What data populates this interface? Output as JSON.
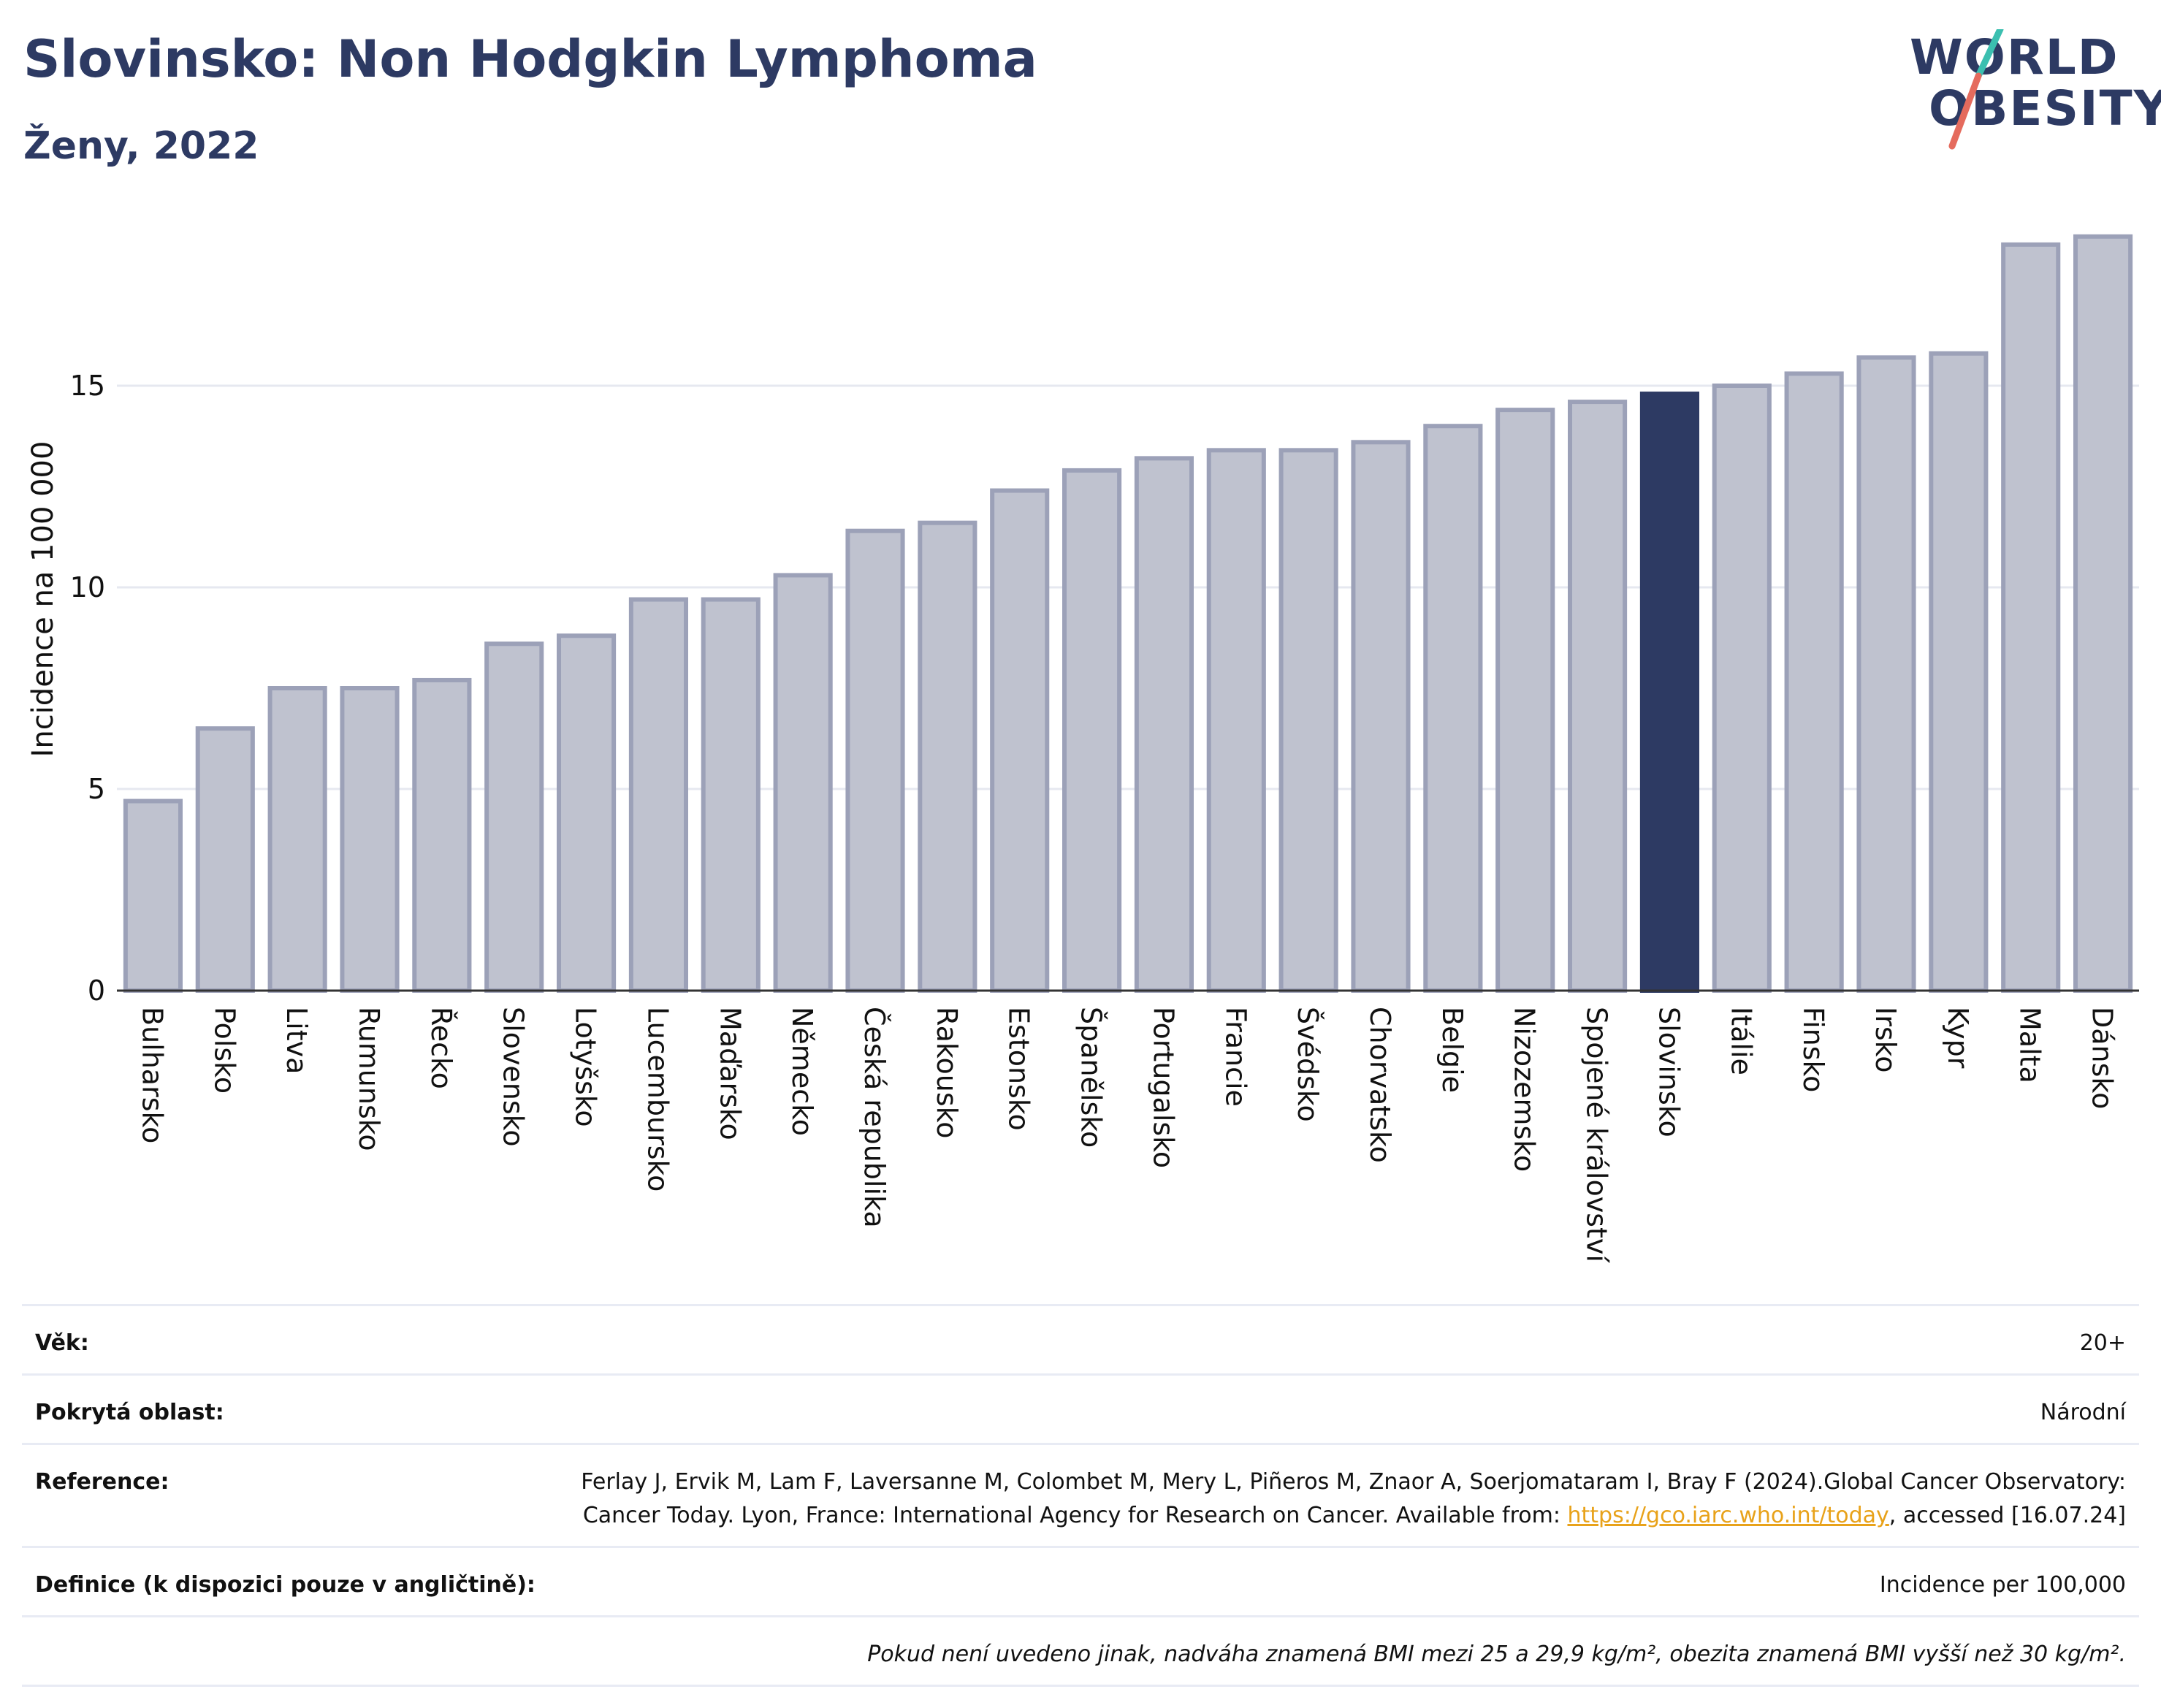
{
  "header": {
    "title": "Slovinsko: Non Hodgkin Lymphoma",
    "subtitle": "Ženy, 2022"
  },
  "logo": {
    "line1": "WORLD",
    "line2": "OBESITY",
    "colors": {
      "text": "#2d3a63",
      "slash_top": "#3bbfb0",
      "slash_bottom": "#e56b5d"
    }
  },
  "chart_data": {
    "type": "bar",
    "title": "Slovinsko: Non Hodgkin Lymphoma",
    "subtitle": "Ženy, 2022",
    "ylabel": "Incidence na 100 000",
    "xlabel": "",
    "ylim": [
      0,
      19
    ],
    "yticks": [
      0,
      5,
      10,
      15
    ],
    "grid": true,
    "categories": [
      "Bulharsko",
      "Polsko",
      "Litva",
      "Rumunsko",
      "Řecko",
      "Slovensko",
      "Lotyšsko",
      "Lucembursko",
      "Maďarsko",
      "Německo",
      "Česká republika",
      "Rakousko",
      "Estonsko",
      "Španělsko",
      "Portugalsko",
      "Francie",
      "Švédsko",
      "Chorvatsko",
      "Belgie",
      "Nizozemsko",
      "Spojené království",
      "Slovinsko",
      "Itálie",
      "Finsko",
      "Irsko",
      "Kypr",
      "Malta",
      "Dánsko"
    ],
    "values": [
      4.7,
      6.5,
      7.5,
      7.5,
      7.7,
      8.6,
      8.8,
      9.7,
      9.7,
      10.3,
      11.4,
      11.6,
      12.4,
      12.9,
      13.2,
      13.4,
      13.4,
      13.6,
      14.0,
      14.4,
      14.6,
      14.8,
      15.0,
      15.3,
      15.7,
      15.8,
      18.5,
      18.7
    ],
    "highlight": "Slovinsko",
    "colors": {
      "bar": "#bfc2cf",
      "bar_border": "#9ca1b8",
      "highlight": "#2d3a63",
      "grid": "#e6e8f0",
      "axis": "#333333"
    }
  },
  "info": {
    "rows": [
      {
        "label": "Věk:",
        "value": "20+"
      },
      {
        "label": "Pokrytá oblast:",
        "value": "Národní"
      },
      {
        "label": "Reference:",
        "value_pre": "Ferlay J, Ervik M, Lam F, Laversanne M, Colombet M, Mery L, Piñeros M, Znaor A, Soerjomataram I, Bray F (2024).Global Cancer Observatory: Cancer Today. Lyon, France: International Agency for Research on Cancer. Available from: ",
        "link": "https://gco.iarc.who.int/today",
        "value_post": ", accessed [16.07.24]"
      },
      {
        "label": "Definice (k dispozici pouze v angličtině):",
        "value": "Incidence per 100,000"
      }
    ],
    "note": "Pokud není uvedeno jinak, nadváha znamená BMI mezi 25 a 29,9 kg/m², obezita znamená BMI vyšší než 30 kg/m²."
  }
}
